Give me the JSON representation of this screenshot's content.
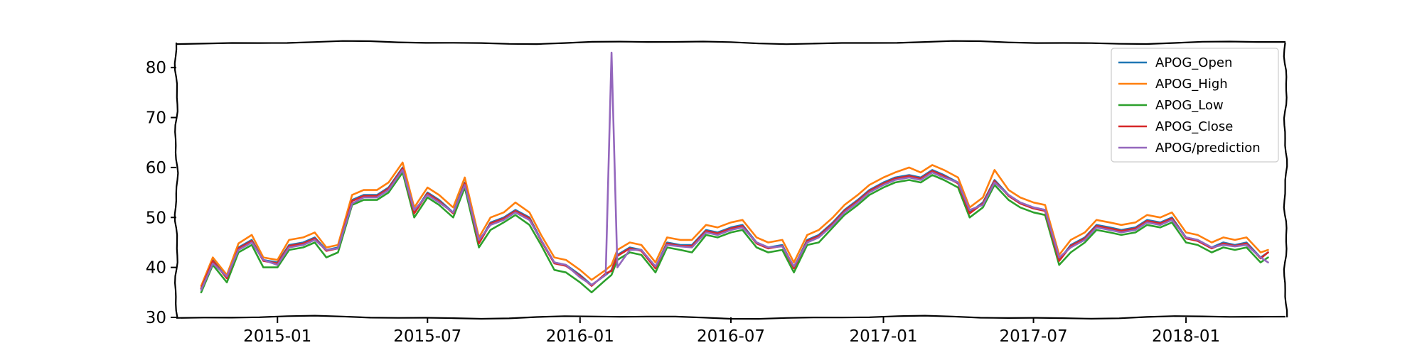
{
  "chart_data": {
    "type": "line",
    "title": "",
    "xlabel": "",
    "ylabel": "",
    "ylim": [
      30,
      85
    ],
    "xlim": [
      "2014-09-01",
      "2018-05-01"
    ],
    "yticks": [
      30,
      40,
      50,
      60,
      70,
      80
    ],
    "xticks": [
      "2015-01",
      "2015-07",
      "2016-01",
      "2016-07",
      "2017-01",
      "2017-07",
      "2018-01"
    ],
    "legend_position": "top-right",
    "grid": false,
    "style": "xkcd",
    "x": [
      "2014-10-01",
      "2014-10-15",
      "2014-11-01",
      "2014-11-15",
      "2014-12-01",
      "2014-12-15",
      "2015-01-01",
      "2015-01-15",
      "2015-02-01",
      "2015-02-15",
      "2015-03-01",
      "2015-03-15",
      "2015-04-01",
      "2015-04-15",
      "2015-05-01",
      "2015-05-15",
      "2015-06-01",
      "2015-06-15",
      "2015-07-01",
      "2015-07-15",
      "2015-08-01",
      "2015-08-15",
      "2015-09-01",
      "2015-09-15",
      "2015-10-01",
      "2015-10-15",
      "2015-11-01",
      "2015-11-15",
      "2015-12-01",
      "2015-12-15",
      "2016-01-01",
      "2016-01-15",
      "2016-02-01",
      "2016-02-08",
      "2016-02-15",
      "2016-03-01",
      "2016-03-15",
      "2016-04-01",
      "2016-04-15",
      "2016-05-01",
      "2016-05-15",
      "2016-06-01",
      "2016-06-15",
      "2016-07-01",
      "2016-07-15",
      "2016-08-01",
      "2016-08-15",
      "2016-09-01",
      "2016-09-15",
      "2016-10-01",
      "2016-10-15",
      "2016-11-01",
      "2016-11-15",
      "2016-12-01",
      "2016-12-15",
      "2017-01-01",
      "2017-01-15",
      "2017-02-01",
      "2017-02-15",
      "2017-03-01",
      "2017-03-15",
      "2017-04-01",
      "2017-04-15",
      "2017-05-01",
      "2017-05-15",
      "2017-06-01",
      "2017-06-15",
      "2017-07-01",
      "2017-07-15",
      "2017-08-01",
      "2017-08-15",
      "2017-09-01",
      "2017-09-15",
      "2017-10-01",
      "2017-10-15",
      "2017-11-01",
      "2017-11-15",
      "2017-12-01",
      "2017-12-15",
      "2018-01-01",
      "2018-01-15",
      "2018-02-01",
      "2018-02-15",
      "2018-03-01",
      "2018-03-15",
      "2018-04-01",
      "2018-04-10"
    ],
    "series": [
      {
        "name": "APOG_Open",
        "color": "#1f77b4",
        "values": [
          35.8,
          41.5,
          38,
          44,
          45.5,
          41.5,
          41,
          44.5,
          45,
          46,
          43.5,
          44,
          53.5,
          54.5,
          54.5,
          56,
          60,
          51,
          55,
          53.5,
          51,
          57,
          45,
          49,
          50,
          51.5,
          50,
          45.5,
          41,
          40.5,
          38.5,
          36.5,
          38.5,
          39.5,
          42.5,
          44,
          43.5,
          40,
          45,
          44.5,
          44.5,
          47.5,
          47,
          48,
          48.5,
          45,
          44,
          44.5,
          40,
          45.5,
          46.5,
          49,
          51.5,
          53.5,
          55.5,
          57,
          58,
          58.5,
          58,
          59.5,
          58.5,
          57,
          51,
          53,
          57.5,
          54.5,
          53,
          52,
          51.5,
          41.5,
          44.5,
          46,
          48.5,
          48,
          47.5,
          48,
          49.5,
          49,
          50,
          46,
          45.5,
          44,
          45,
          44.5,
          45,
          42,
          43
        ]
      },
      {
        "name": "APOG_High",
        "color": "#ff7f0e",
        "values": [
          36.3,
          42,
          38.5,
          44.8,
          46.5,
          42,
          41.5,
          45.5,
          46,
          47,
          44,
          44.5,
          54.5,
          55.5,
          55.5,
          57,
          61,
          52,
          56,
          54.5,
          52,
          58,
          46,
          50,
          51,
          53,
          51,
          46.5,
          42,
          41.5,
          39.5,
          37.5,
          39.5,
          40.5,
          43.5,
          45,
          44.5,
          41,
          46,
          45.5,
          45.5,
          48.5,
          48,
          49,
          49.5,
          46,
          45,
          45.5,
          41,
          46.5,
          47.5,
          50,
          52.5,
          54.5,
          56.5,
          58,
          59,
          60,
          59,
          60.5,
          59.5,
          58,
          52,
          54,
          59.5,
          55.5,
          54,
          53,
          52.5,
          42.5,
          45.5,
          47,
          49.5,
          49,
          48.5,
          49,
          50.5,
          50,
          51,
          47,
          46.5,
          45,
          46,
          45.5,
          46,
          43,
          43.5
        ]
      },
      {
        "name": "APOG_Low",
        "color": "#2ca02c",
        "values": [
          35,
          40.5,
          37,
          43,
          44.5,
          40,
          40,
          43.5,
          44,
          45,
          42,
          43,
          52.5,
          53.5,
          53.5,
          55,
          59,
          50,
          54,
          52.5,
          50,
          56,
          44,
          47.5,
          49,
          50.5,
          48.5,
          44.5,
          39.5,
          39,
          37,
          35,
          37.5,
          38.5,
          41.5,
          43,
          42.5,
          39,
          44,
          43.5,
          43,
          46.5,
          46,
          47,
          47.5,
          44,
          43,
          43.5,
          39,
          44.5,
          45,
          48,
          50.5,
          52.5,
          54.5,
          56,
          57,
          57.5,
          57,
          58.5,
          57.5,
          56,
          50,
          52,
          56.5,
          53.5,
          52,
          51,
          50.5,
          40.5,
          43,
          45,
          47.5,
          47,
          46.5,
          47,
          48.5,
          48,
          49,
          45,
          44.5,
          43,
          44,
          43.5,
          44,
          41,
          42
        ]
      },
      {
        "name": "APOG_Close",
        "color": "#d62728",
        "values": [
          35.8,
          41.3,
          37.8,
          43.8,
          45.3,
          41.3,
          40.8,
          44.3,
          44.8,
          45.8,
          43.3,
          43.8,
          53.3,
          54.3,
          54.3,
          55.8,
          59.8,
          50.8,
          54.8,
          53.3,
          50.8,
          56.8,
          44.8,
          48.8,
          49.8,
          51.3,
          49.8,
          45.3,
          40.8,
          40.3,
          38.3,
          36.3,
          38.8,
          39.3,
          42.3,
          43.8,
          43.3,
          39.8,
          44.8,
          44.3,
          44.3,
          47.3,
          46.8,
          47.8,
          48.3,
          44.8,
          43.8,
          44.3,
          39.8,
          45.3,
          46.3,
          48.8,
          51.3,
          53.3,
          55.3,
          56.8,
          57.8,
          58.3,
          57.8,
          59.3,
          58.3,
          56.8,
          50.8,
          52.8,
          57.3,
          54.3,
          52.8,
          51.8,
          51.3,
          41.3,
          44.3,
          45.8,
          48.3,
          47.8,
          47.3,
          47.8,
          49.3,
          48.8,
          49.8,
          45.8,
          45.3,
          43.8,
          44.8,
          44.3,
          44.8,
          41.8,
          43
        ]
      },
      {
        "name": "APOG/prediction",
        "color": "#9467bd",
        "values": [
          35.5,
          40.8,
          38.2,
          43.5,
          45,
          41.5,
          40.5,
          44,
          44.5,
          45.5,
          43.5,
          43.8,
          52.8,
          54,
          54,
          55.5,
          59.5,
          51.5,
          54.5,
          53,
          51,
          56.5,
          45.5,
          48.5,
          49.5,
          51,
          49.5,
          45.5,
          41,
          40.5,
          38,
          36.5,
          38.5,
          83,
          40,
          43.5,
          43.5,
          40.2,
          44.5,
          44.2,
          44,
          47,
          46.5,
          47.5,
          48,
          45,
          44,
          44.2,
          40.2,
          45,
          46,
          48.5,
          51,
          53,
          55,
          56.5,
          57.5,
          58,
          57.5,
          59,
          58,
          57,
          51.5,
          52.5,
          57,
          54.5,
          53,
          52,
          51.5,
          42,
          44,
          45.5,
          48,
          47.5,
          47,
          47.5,
          49,
          48.5,
          49.5,
          46,
          45.5,
          44,
          44.5,
          44.2,
          44.5,
          42,
          41
        ]
      }
    ]
  }
}
